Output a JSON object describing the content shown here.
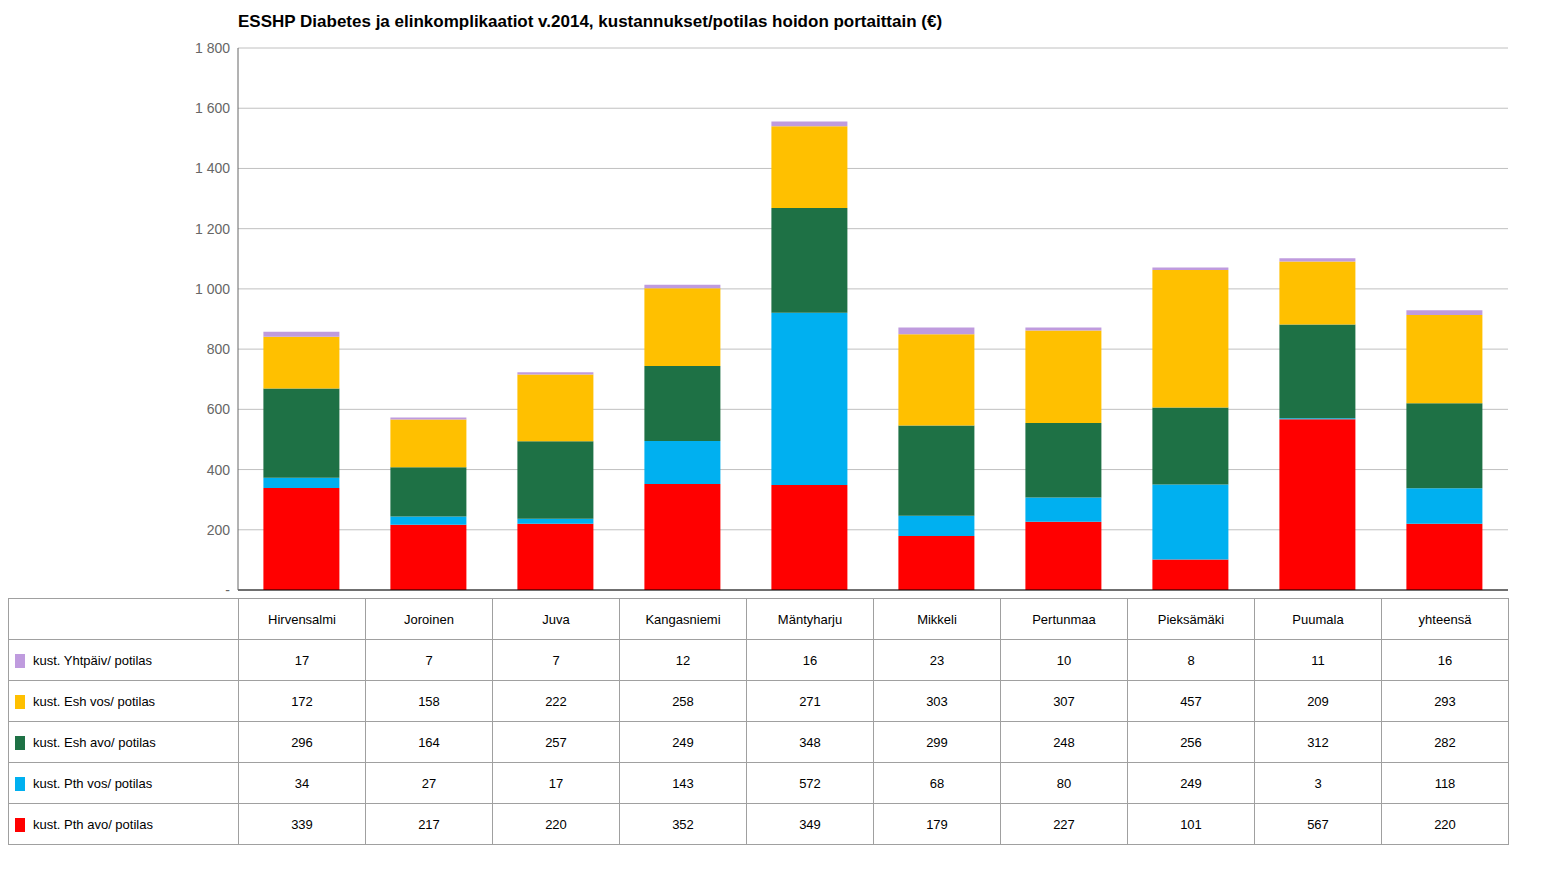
{
  "chart_data": {
    "type": "bar",
    "title": "ESSHP Diabetes ja elinkomplikaatiot v.2014, kustannukset/potilas hoidon portaittain (€)",
    "categories": [
      "Hirvensalmi",
      "Joroinen",
      "Juva",
      "Kangasniemi",
      "Mäntyharju",
      "Mikkeli",
      "Pertunmaa",
      "Pieksämäki",
      "Puumala",
      "yhteensä"
    ],
    "series": [
      {
        "name": "kust. Pth avo/ potilas",
        "color": "#ff0000",
        "values": [
          339,
          217,
          220,
          352,
          349,
          179,
          227,
          101,
          567,
          220
        ]
      },
      {
        "name": "kust. Pth vos/ potilas",
        "color": "#00b0f0",
        "values": [
          34,
          27,
          17,
          143,
          572,
          68,
          80,
          249,
          3,
          118
        ]
      },
      {
        "name": "kust. Esh avo/ potilas",
        "color": "#1e7145",
        "values": [
          296,
          164,
          257,
          249,
          348,
          299,
          248,
          256,
          312,
          282
        ]
      },
      {
        "name": "kust. Esh vos/ potilas",
        "color": "#ffc000",
        "values": [
          172,
          158,
          222,
          258,
          271,
          303,
          307,
          457,
          209,
          293
        ]
      },
      {
        "name": "kust. Yhtpäiv/ potilas",
        "color": "#bf9bde",
        "values": [
          17,
          7,
          7,
          12,
          16,
          23,
          10,
          8,
          11,
          16
        ]
      }
    ],
    "stacked": true,
    "grid": true,
    "tick_labels": "y",
    "ylim": [
      0,
      1800
    ],
    "yticks": [
      {
        "value": 0,
        "label": "-"
      },
      200,
      400,
      600,
      800,
      {
        "value": 1000,
        "label": "1 000"
      },
      {
        "value": 1200,
        "label": "1 200"
      },
      {
        "value": 1400,
        "label": "1 400"
      },
      {
        "value": 1600,
        "label": "1 600"
      },
      {
        "value": 1800,
        "label": "1 800"
      }
    ]
  }
}
